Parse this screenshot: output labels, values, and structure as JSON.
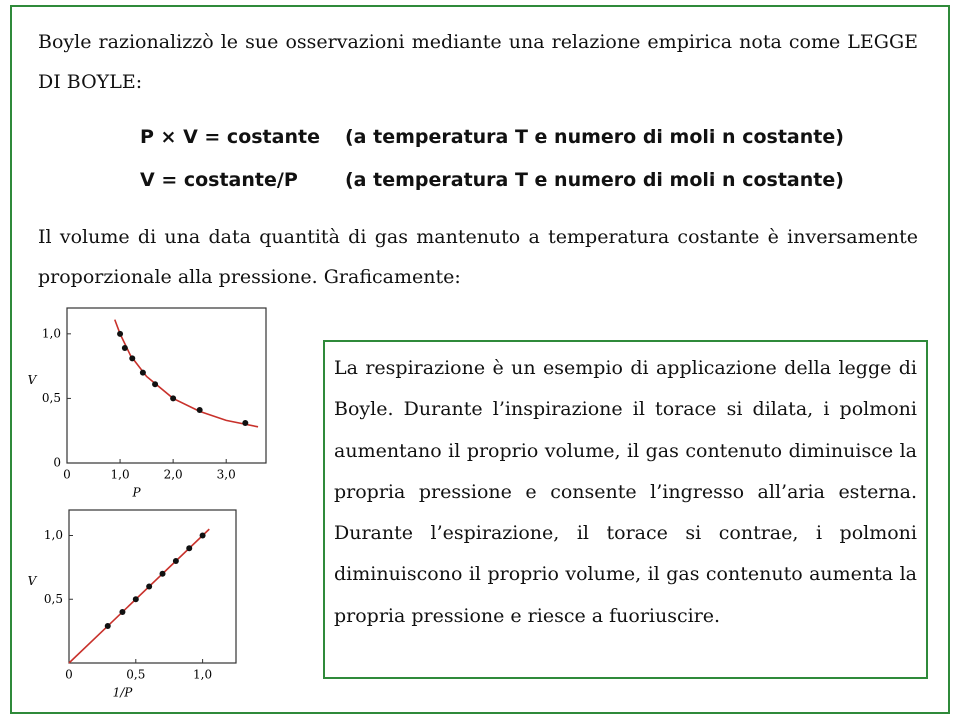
{
  "document": {
    "intro": "Boyle razionalizzò le sue osservazioni mediante una relazione empirica nota come LEGGE DI BOYLE:",
    "equations": [
      [
        "P × V = costante",
        "(a temperatura T e numero di moli n costante)"
      ],
      [
        "V = costante/P",
        "(a temperatura T e numero di moli n costante)"
      ]
    ],
    "statement": "Il volume di una data quantità di gas mantenuto a temperatura costante è inversamente proporzionale alla pressione. Graficamente:",
    "box": "La respirazione è un esempio di applicazione della legge di Boyle. Durante l’inspirazione il torace si dilata, i polmoni aumentano il proprio volume, il gas contenuto diminuisce la propria pressione e consente l’ingresso all’aria esterna. Durante l’espirazione, il torace si contrae, i polmoni diminuiscono il proprio volume, il gas contenuto aumenta la propria pressione e riesce a fuoriuscire."
  },
  "chart_data": [
    {
      "type": "scatter",
      "x_label": "P",
      "y_label": "V",
      "xlim": [
        0,
        3.75
      ],
      "ylim": [
        0,
        1.2
      ],
      "xticks": [
        0,
        {
          "value": 1,
          "label": "1,0"
        },
        {
          "value": 2,
          "label": "2,0"
        },
        {
          "value": 3,
          "label": "3,0"
        }
      ],
      "yticks": [
        0,
        {
          "value": 0.5,
          "label": "0,5"
        },
        {
          "value": 1,
          "label": "1,0"
        }
      ],
      "series": [
        {
          "style": "line",
          "color": "#c8312b",
          "x": [
            0.9,
            1,
            1.2,
            1.5,
            2,
            2.5,
            3,
            3.6
          ],
          "values": [
            1.11,
            1.0,
            0.83,
            0.67,
            0.5,
            0.4,
            0.33,
            0.28
          ]
        },
        {
          "style": "markers",
          "color": "#111111",
          "x": [
            1.0,
            1.09,
            1.23,
            1.43,
            1.66,
            2.0,
            2.5,
            3.36
          ],
          "values": [
            1.0,
            0.89,
            0.81,
            0.7,
            0.61,
            0.5,
            0.41,
            0.31
          ]
        }
      ]
    },
    {
      "type": "scatter",
      "x_label": "1/P",
      "y_label": "V",
      "xlim": [
        0,
        1.25
      ],
      "ylim": [
        0,
        1.2
      ],
      "xticks": [
        0,
        {
          "value": 0.5,
          "label": "0,5"
        },
        {
          "value": 1,
          "label": "1,0"
        }
      ],
      "yticks": [
        {
          "value": 0.5,
          "label": "0,5"
        },
        {
          "value": 1,
          "label": "1,0"
        }
      ],
      "series": [
        {
          "style": "line",
          "color": "#c8312b",
          "x": [
            0,
            1.05
          ],
          "values": [
            0,
            1.05
          ]
        },
        {
          "style": "markers",
          "color": "#111111",
          "x": [
            0.29,
            0.4,
            0.5,
            0.6,
            0.7,
            0.8,
            0.9,
            1.0
          ],
          "values": [
            0.29,
            0.4,
            0.5,
            0.6,
            0.7,
            0.8,
            0.9,
            1.0
          ]
        }
      ]
    }
  ]
}
